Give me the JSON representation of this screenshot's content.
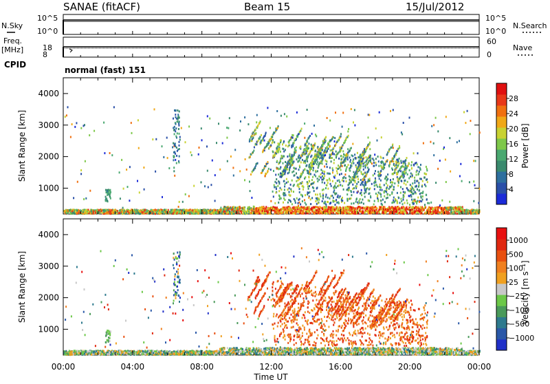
{
  "header": {
    "station": "SANAE (fitACF)",
    "beam": "Beam 15",
    "date": "15/Jul/2012"
  },
  "nsky_panel": {
    "left_label": "N.Sky",
    "right_label": "N.Search",
    "left_ticks": [
      "10^5",
      "10^0"
    ],
    "right_ticks": [
      "10^5",
      "10^0"
    ]
  },
  "freq_panel": {
    "left_label_line1": "Freq.",
    "left_label_line2": "[MHz]",
    "right_label": "Nave",
    "left_ticks": [
      "18",
      "8"
    ],
    "right_ticks": [
      "60",
      "0"
    ]
  },
  "cpid_panel": {
    "label": "CPID",
    "text": "normal (fast) 151"
  },
  "chart_data": [
    {
      "type": "heatmap",
      "quantity": "Power",
      "xlabel": "Time UT",
      "ylabel": "Slant Range [km]",
      "xlim_hours": [
        0,
        24
      ],
      "ylim_km": [
        180,
        4500
      ],
      "x_ticks": [
        "00:00",
        "04:00",
        "08:00",
        "12:00",
        "16:00",
        "20:00",
        "00:00"
      ],
      "y_ticks": [
        1000,
        2000,
        3000,
        4000
      ],
      "colorbar": {
        "label": "Power [dB]",
        "range": [
          0,
          32
        ],
        "ticks": [
          4,
          8,
          12,
          16,
          20,
          24,
          28
        ],
        "colors": [
          "#1b2bd8",
          "#2a4fa8",
          "#2e6f9e",
          "#3a8a6e",
          "#4aa870",
          "#7ec84a",
          "#c8d232",
          "#f0a818",
          "#f07010",
          "#e83818",
          "#e01010"
        ]
      }
    },
    {
      "type": "heatmap",
      "quantity": "Velocity",
      "xlabel": "Time UT",
      "ylabel": "Slant Range [km]",
      "xlim_hours": [
        0,
        24
      ],
      "ylim_km": [
        180,
        4500
      ],
      "x_ticks": [
        "00:00",
        "04:00",
        "08:00",
        "12:00",
        "16:00",
        "20:00",
        "00:00"
      ],
      "y_ticks": [
        1000,
        2000,
        3000,
        4000
      ],
      "colorbar": {
        "label": "Velocity [m s⁻¹]",
        "tick_labels": [
          "1000",
          "500",
          "100",
          "25",
          "−25",
          "−100",
          "−500",
          "−1000"
        ],
        "colors": [
          "#2030c8",
          "#2a58a8",
          "#2e7a8e",
          "#4a9a5a",
          "#6cc848",
          "#c8c8c8",
          "#f0a020",
          "#f08020",
          "#e85010",
          "#e02810",
          "#e81010"
        ]
      }
    }
  ]
}
